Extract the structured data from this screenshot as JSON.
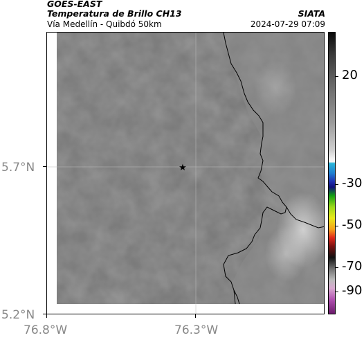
{
  "header": {
    "satellite": "GOES-EAST",
    "product": "Temperatura de Brillo CH13",
    "agency": "SIATA",
    "location": "Vía Medellín - Quibdó 50km",
    "datetime": "2024-07-29 07:09"
  },
  "map": {
    "y_ticks": [
      "5.7°N",
      "5.2°N"
    ],
    "x_ticks": [
      "76.8°W",
      "76.3°W"
    ],
    "marker_icon": "star-icon"
  },
  "colorbar": {
    "ticks": [
      "20",
      "-30",
      "-50",
      "-70",
      "-90"
    ],
    "unit": ""
  },
  "colors": {
    "land_gray": "#7a7a7a",
    "boundary": "#000000"
  }
}
